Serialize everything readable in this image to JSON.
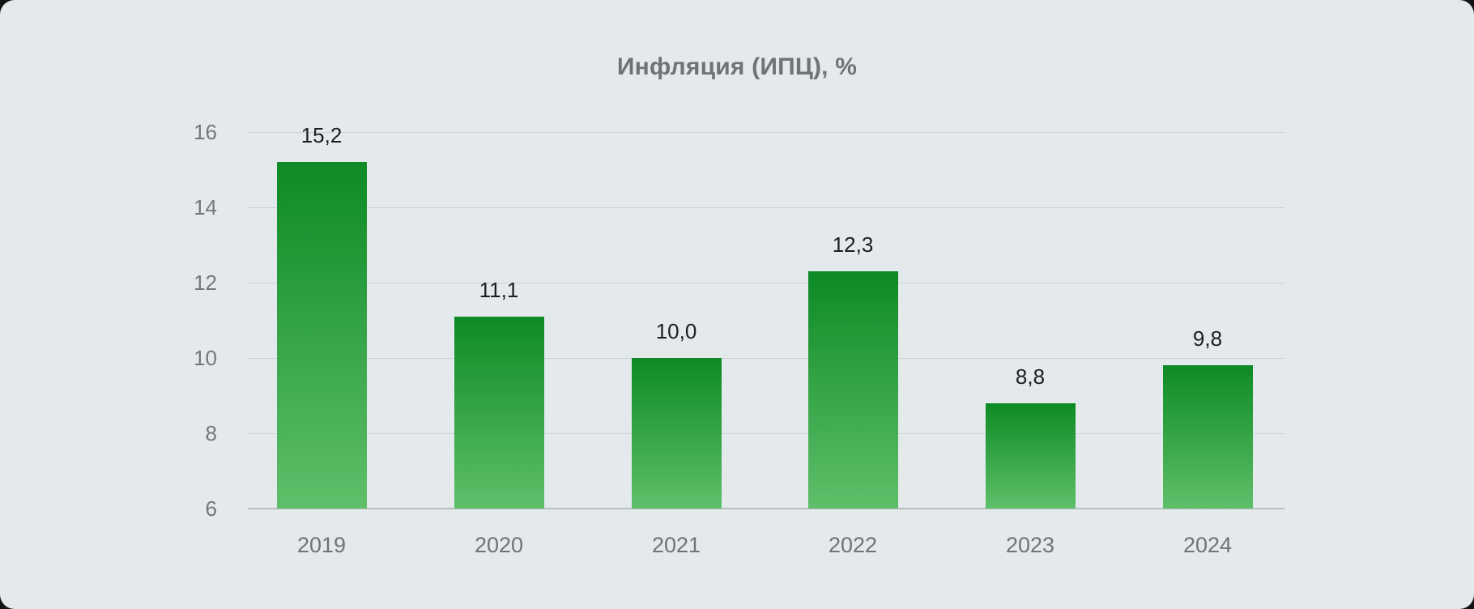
{
  "chart_data": {
    "type": "bar",
    "title": "Инфляция (ИПЦ), %",
    "categories": [
      "2019",
      "2020",
      "2021",
      "2022",
      "2023",
      "2024"
    ],
    "values": [
      15.2,
      11.1,
      10.0,
      12.3,
      8.8,
      9.8
    ],
    "value_labels": [
      "15,2",
      "11,1",
      "10,0",
      "12,3",
      "8,8",
      "9,8"
    ],
    "yticks": [
      16,
      14,
      12,
      10,
      8,
      6
    ],
    "ylim": [
      6,
      16
    ],
    "xlabel": "",
    "ylabel": "",
    "grid": "horizontal",
    "legend": "none",
    "colors": {
      "panel_background": "#e4e9ec",
      "bar_gradient_top": "#0d8a25",
      "bar_gradient_bottom": "#5fbf6a",
      "gridline": "#cdd2d6",
      "baseline": "#b9bec3",
      "axis_text": "#73787c",
      "value_text": "#1b1e21",
      "title_text": "#6e7377"
    }
  }
}
